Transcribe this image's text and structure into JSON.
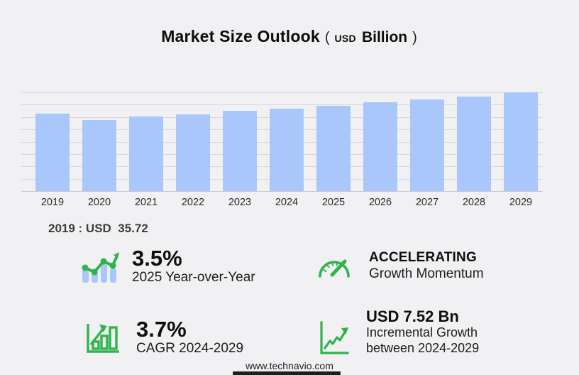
{
  "title": {
    "main": "Market Size Outlook",
    "paren_open": "(",
    "unit_small": "USD",
    "unit_big": "Billion",
    "paren_close": ")"
  },
  "chart_data": {
    "type": "bar",
    "title": "Market Size Outlook (USD Billion)",
    "categories": [
      "2019",
      "2020",
      "2021",
      "2022",
      "2023",
      "2024",
      "2025",
      "2026",
      "2027",
      "2028",
      "2029"
    ],
    "values": [
      35.72,
      32.8,
      34.4,
      35.4,
      37.0,
      38.0,
      39.3,
      41.0,
      42.3,
      43.6,
      45.5
    ],
    "xlabel": "",
    "ylabel": "",
    "ylim": [
      0,
      45.6
    ],
    "grid": true,
    "gridline_count": 9,
    "legend": "none",
    "bar_color": "#a9c7fa"
  },
  "annotation": {
    "base_year_value": "2019 : USD  35.72"
  },
  "stats": [
    {
      "value": "3.5%",
      "label": "2025 Year-over-Year",
      "icon": "bar-trend-arrow"
    },
    {
      "value": "ACCELERATING",
      "label": "Growth Momentum",
      "icon": "speedometer"
    },
    {
      "value": "3.7%",
      "label": "CAGR 2024-2029",
      "icon": "bar-chart-growth"
    },
    {
      "value": "USD 7.52 Bn",
      "label": "Incremental Growth",
      "label2": "between 2024-2029",
      "icon": "axis-trend-arrow"
    }
  ],
  "footer": {
    "url": "www.technavio.com"
  },
  "colors": {
    "background": "#f1f1f3",
    "bar_blue": "#a9c7fa",
    "accent_green": "#30b44a",
    "gridline": "#d8d8db"
  }
}
